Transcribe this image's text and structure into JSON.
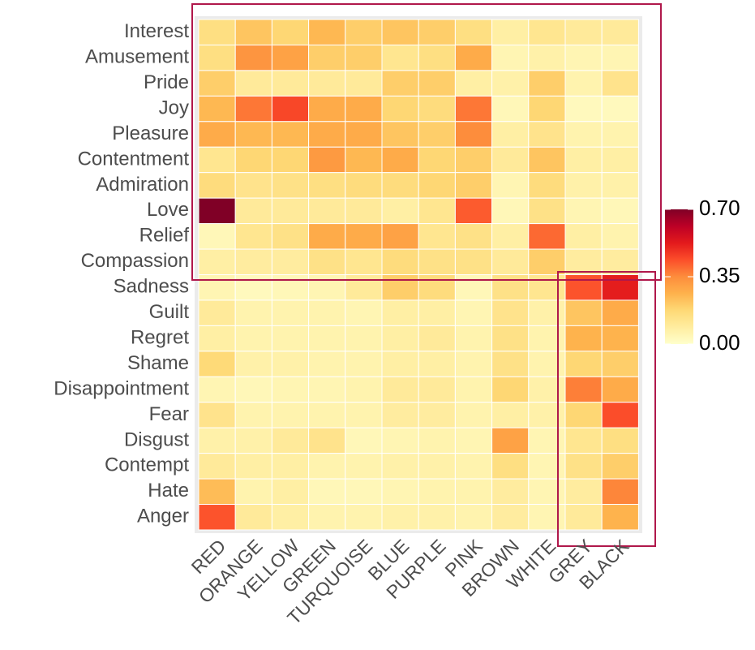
{
  "chart_data": {
    "type": "heatmap",
    "x_categories": [
      "RED",
      "ORANGE",
      "YELLOW",
      "GREEN",
      "TURQUOISE",
      "BLUE",
      "PURPLE",
      "PINK",
      "BROWN",
      "WHITE",
      "GREY",
      "BLACK"
    ],
    "y_categories": [
      "Interest",
      "Amusement",
      "Pride",
      "Joy",
      "Pleasure",
      "Contentment",
      "Admiration",
      "Love",
      "Relief",
      "Compassion",
      "Sadness",
      "Guilt",
      "Regret",
      "Shame",
      "Disappointment",
      "Fear",
      "Disgust",
      "Contempt",
      "Hate",
      "Anger"
    ],
    "values": [
      [
        0.15,
        0.22,
        0.18,
        0.25,
        0.2,
        0.22,
        0.2,
        0.15,
        0.08,
        0.12,
        0.1,
        0.1
      ],
      [
        0.15,
        0.33,
        0.3,
        0.2,
        0.2,
        0.12,
        0.15,
        0.28,
        0.05,
        0.07,
        0.05,
        0.05
      ],
      [
        0.2,
        0.1,
        0.1,
        0.1,
        0.1,
        0.2,
        0.2,
        0.08,
        0.07,
        0.2,
        0.06,
        0.13
      ],
      [
        0.25,
        0.38,
        0.45,
        0.28,
        0.28,
        0.18,
        0.16,
        0.38,
        0.04,
        0.18,
        0.03,
        0.03
      ],
      [
        0.28,
        0.25,
        0.25,
        0.28,
        0.28,
        0.22,
        0.2,
        0.35,
        0.08,
        0.13,
        0.06,
        0.06
      ],
      [
        0.12,
        0.18,
        0.18,
        0.32,
        0.25,
        0.28,
        0.18,
        0.2,
        0.1,
        0.22,
        0.08,
        0.08
      ],
      [
        0.16,
        0.13,
        0.14,
        0.15,
        0.16,
        0.16,
        0.18,
        0.2,
        0.05,
        0.16,
        0.07,
        0.07
      ],
      [
        0.7,
        0.1,
        0.1,
        0.1,
        0.1,
        0.08,
        0.12,
        0.42,
        0.04,
        0.14,
        0.05,
        0.04
      ],
      [
        0.04,
        0.12,
        0.14,
        0.28,
        0.28,
        0.3,
        0.12,
        0.14,
        0.08,
        0.4,
        0.08,
        0.06
      ],
      [
        0.08,
        0.09,
        0.09,
        0.14,
        0.12,
        0.16,
        0.14,
        0.14,
        0.1,
        0.2,
        0.09,
        0.09
      ],
      [
        0.05,
        0.03,
        0.04,
        0.05,
        0.1,
        0.2,
        0.16,
        0.04,
        0.14,
        0.12,
        0.43,
        0.52
      ],
      [
        0.1,
        0.06,
        0.06,
        0.06,
        0.05,
        0.08,
        0.08,
        0.05,
        0.13,
        0.07,
        0.22,
        0.28
      ],
      [
        0.08,
        0.06,
        0.06,
        0.06,
        0.06,
        0.08,
        0.1,
        0.06,
        0.14,
        0.06,
        0.26,
        0.26
      ],
      [
        0.17,
        0.07,
        0.07,
        0.06,
        0.06,
        0.08,
        0.08,
        0.06,
        0.14,
        0.06,
        0.18,
        0.2
      ],
      [
        0.05,
        0.04,
        0.05,
        0.05,
        0.06,
        0.1,
        0.1,
        0.06,
        0.18,
        0.07,
        0.37,
        0.28
      ],
      [
        0.13,
        0.06,
        0.06,
        0.06,
        0.06,
        0.09,
        0.09,
        0.06,
        0.08,
        0.07,
        0.18,
        0.44
      ],
      [
        0.07,
        0.07,
        0.1,
        0.13,
        0.04,
        0.05,
        0.06,
        0.05,
        0.3,
        0.05,
        0.12,
        0.15
      ],
      [
        0.1,
        0.08,
        0.08,
        0.06,
        0.06,
        0.07,
        0.07,
        0.06,
        0.15,
        0.05,
        0.14,
        0.2
      ],
      [
        0.24,
        0.06,
        0.08,
        0.04,
        0.04,
        0.05,
        0.06,
        0.06,
        0.09,
        0.05,
        0.09,
        0.36
      ],
      [
        0.43,
        0.1,
        0.08,
        0.06,
        0.06,
        0.07,
        0.07,
        0.06,
        0.09,
        0.05,
        0.1,
        0.26
      ]
    ],
    "colorscale": [
      "#ffffcc",
      "#ffeda0",
      "#fed976",
      "#feb24c",
      "#fd8d3c",
      "#fc4e2a",
      "#e31a1c",
      "#bd0026",
      "#800026"
    ],
    "zlim": [
      0,
      0.7
    ],
    "zticks": [
      {
        "value": 0,
        "label": "0.00"
      },
      {
        "value": 0.35,
        "label": "0.35"
      },
      {
        "value": 0.7,
        "label": "0.70"
      }
    ]
  }
}
